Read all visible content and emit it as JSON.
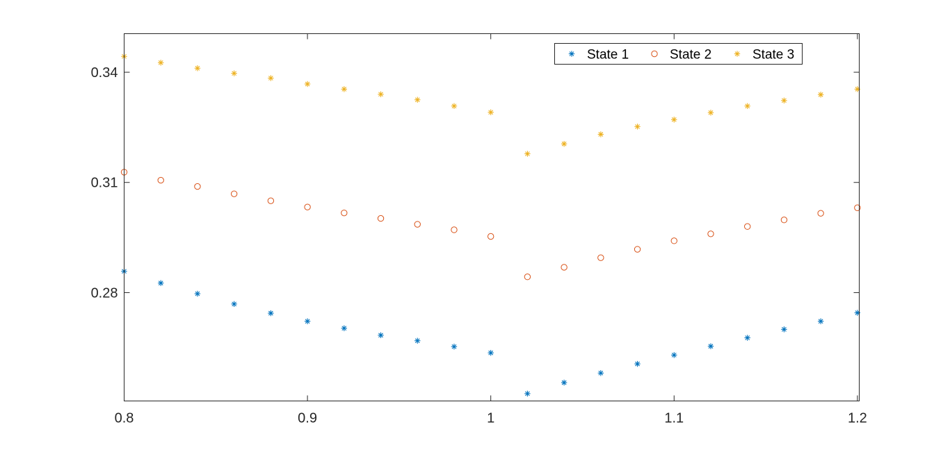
{
  "chart_data": {
    "type": "scatter",
    "title": "",
    "xlabel": "",
    "ylabel": "",
    "xlim": [
      0.8,
      1.201
    ],
    "ylim": [
      0.2505,
      0.3505
    ],
    "xticks": [
      0.8,
      0.9,
      1.0,
      1.1,
      1.2
    ],
    "xtick_labels": [
      "0.8",
      "0.9",
      "1",
      "1.1",
      "1.2"
    ],
    "yticks": [
      0.28,
      0.31,
      0.34
    ],
    "ytick_labels": [
      "0.28",
      "0.31",
      "0.34"
    ],
    "grid": false,
    "legend_position": "top-right",
    "x": [
      0.8,
      0.82,
      0.84,
      0.86,
      0.88,
      0.9,
      0.92,
      0.94,
      0.96,
      0.98,
      1.0,
      1.02,
      1.04,
      1.06,
      1.08,
      1.1,
      1.12,
      1.14,
      1.16,
      1.18,
      1.2
    ],
    "series": [
      {
        "name": "State 1",
        "marker": "asterisk",
        "color": "#0072BD",
        "values": [
          0.2858,
          0.2826,
          0.2797,
          0.2769,
          0.2744,
          0.2722,
          0.2703,
          0.2684,
          0.2669,
          0.2653,
          0.2636,
          0.2525,
          0.2555,
          0.2581,
          0.2606,
          0.263,
          0.2654,
          0.2677,
          0.27,
          0.2722,
          0.2745
        ]
      },
      {
        "name": "State 2",
        "marker": "circle",
        "color": "#D95319",
        "values": [
          0.3128,
          0.3106,
          0.3089,
          0.3069,
          0.305,
          0.3033,
          0.3017,
          0.3002,
          0.2986,
          0.2971,
          0.2953,
          0.2843,
          0.2869,
          0.2895,
          0.2918,
          0.2941,
          0.296,
          0.298,
          0.2998,
          0.3016,
          0.3031
        ]
      },
      {
        "name": "State 3",
        "marker": "asterisk",
        "color": "#EDB120",
        "values": [
          0.3443,
          0.3426,
          0.3411,
          0.3397,
          0.3384,
          0.3368,
          0.3354,
          0.334,
          0.3325,
          0.3308,
          0.3291,
          0.3178,
          0.3205,
          0.3231,
          0.3252,
          0.3271,
          0.329,
          0.3308,
          0.3323,
          0.3339,
          0.3354
        ]
      }
    ]
  },
  "colors": {
    "axis": "#262626",
    "background": "#ffffff"
  }
}
